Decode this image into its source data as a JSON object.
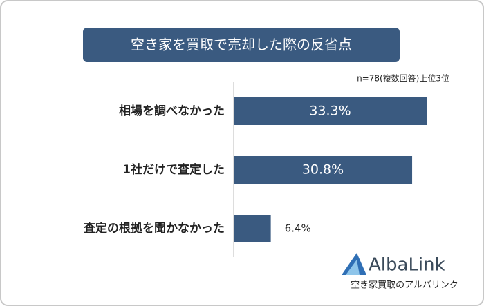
{
  "chart_data": {
    "type": "hbar",
    "title": "空き家を買取で売却した際の反省点",
    "subtitle": "n=78(複数回答)上位3位",
    "categories": [
      "相場を調べなかった",
      "1社だけで査定した",
      "査定の根拠を聞かなかった"
    ],
    "values": [
      33.3,
      30.8,
      6.4
    ],
    "value_labels": [
      "33.3%",
      "30.8%",
      "6.4%"
    ],
    "color": "#3a5a80"
  },
  "brand": {
    "name": "AlbaLink",
    "tagline": "空き家買取のアルバリンク"
  }
}
